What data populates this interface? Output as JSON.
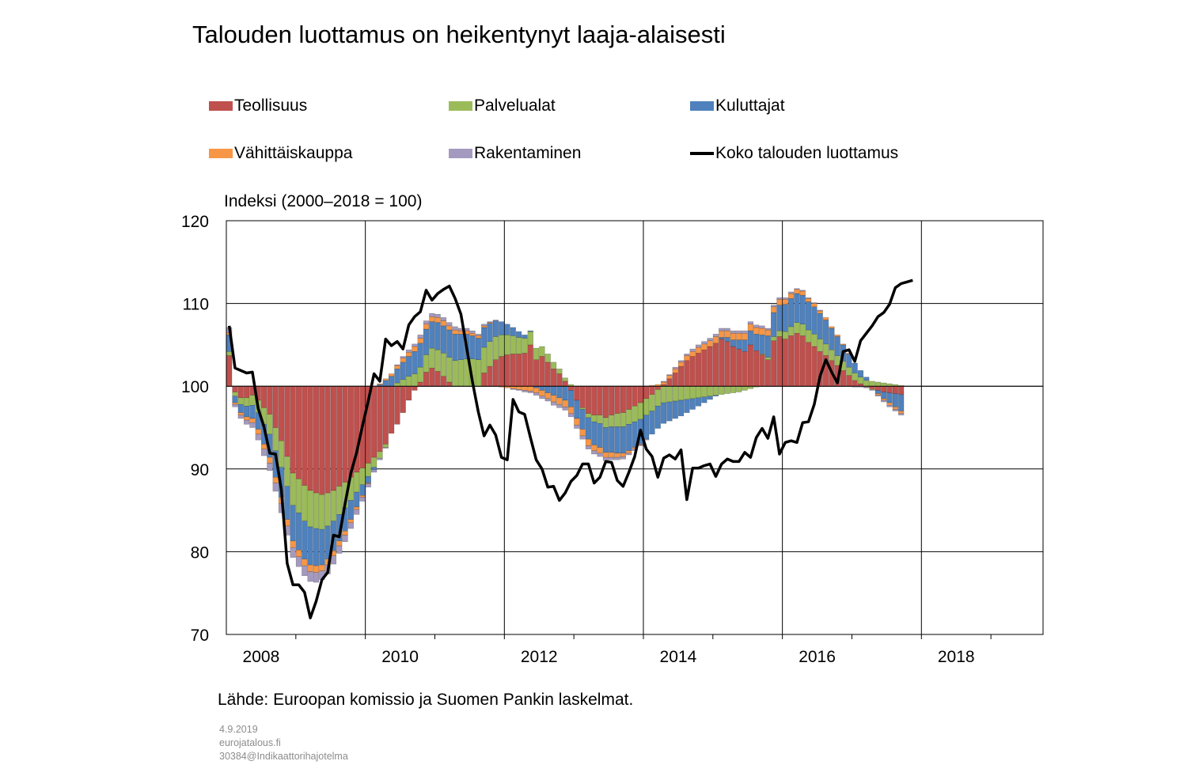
{
  "chart_data": {
    "type": "bar",
    "title": "Talouden luottamus on heikentynyt laaja-alaisesti",
    "ylabel": "Indeksi (2000–2018 = 100)",
    "baseline": 100,
    "ylim": [
      70,
      120
    ],
    "yticks": [
      70,
      80,
      90,
      100,
      110,
      120
    ],
    "xlim": [
      "2008-01",
      "2019-09"
    ],
    "xtick_labels": [
      "2008",
      "2010",
      "2012",
      "2014",
      "2016",
      "2018"
    ],
    "grid": true,
    "legend_position": "top",
    "months_start": "2008-01",
    "months_count": 117,
    "series": [
      {
        "name": "Teollisuus",
        "type": "bar",
        "color": "#c0504d",
        "values": [
          3.7,
          -0.7,
          -1.4,
          -1.4,
          -1.1,
          -1.7,
          -2.6,
          -3.4,
          -5.0,
          -6.6,
          -8.5,
          -10.5,
          -11.2,
          -12.0,
          -12.6,
          -12.9,
          -13.1,
          -12.9,
          -12.6,
          -12.1,
          -11.6,
          -11.0,
          -10.4,
          -9.9,
          -9.3,
          -8.6,
          -7.9,
          -7.0,
          -5.7,
          -4.6,
          -3.2,
          -1.7,
          -0.5,
          0.5,
          1.7,
          2.2,
          1.8,
          1.2,
          0.5,
          0.0,
          0.0,
          0.0,
          0.0,
          0.0,
          1.6,
          2.4,
          3.2,
          3.6,
          3.8,
          3.9,
          3.9,
          4.0,
          5.0,
          3.2,
          3.6,
          2.9,
          2.1,
          1.5,
          0.6,
          -0.5,
          -1.7,
          -2.6,
          -3.3,
          -3.5,
          -3.5,
          -3.8,
          -3.5,
          -3.3,
          -3.2,
          -2.8,
          -2.4,
          -2.0,
          -1.5,
          -1.0,
          -0.4,
          0.2,
          0.9,
          1.6,
          2.4,
          3.1,
          3.6,
          4.0,
          4.4,
          4.8,
          5.2,
          5.7,
          5.4,
          4.8,
          4.5,
          4.2,
          5.0,
          4.3,
          3.8,
          3.2,
          5.5,
          6.0,
          5.7,
          6.1,
          6.4,
          6.1,
          5.3,
          4.8,
          4.2,
          3.7,
          3.1,
          2.5,
          1.9,
          1.3,
          0.7,
          0.3,
          0.0,
          -0.3,
          -0.5,
          -0.7,
          -0.8,
          -0.9,
          -1.0
        ]
      },
      {
        "name": "Palvelualat",
        "type": "bar",
        "color": "#9bbb59",
        "values": [
          0.5,
          -0.5,
          -0.8,
          -1.0,
          -1.2,
          -1.5,
          -2.0,
          -2.4,
          -2.8,
          -3.2,
          -3.6,
          -3.9,
          -4.1,
          -4.3,
          -4.4,
          -4.3,
          -4.2,
          -4.0,
          -3.7,
          -3.4,
          -3.1,
          -2.8,
          -2.4,
          -2.0,
          -1.6,
          -1.2,
          -0.8,
          -0.4,
          0.0,
          0.4,
          0.8,
          1.2,
          1.5,
          1.8,
          2.1,
          2.4,
          2.6,
          2.8,
          3.0,
          3.1,
          3.2,
          3.3,
          3.3,
          3.2,
          3.1,
          3.0,
          2.8,
          2.6,
          2.4,
          2.2,
          2.0,
          1.8,
          1.6,
          1.4,
          1.2,
          1.0,
          0.8,
          0.6,
          0.4,
          0.2,
          0.0,
          -0.2,
          -0.5,
          -0.8,
          -1.0,
          -1.2,
          -1.4,
          -1.6,
          -1.7,
          -1.8,
          -1.9,
          -2.0,
          -2.0,
          -2.0,
          -2.0,
          -2.0,
          -1.9,
          -1.8,
          -1.7,
          -1.6,
          -1.5,
          -1.4,
          -1.3,
          -1.2,
          -1.1,
          -1.0,
          -0.9,
          -0.8,
          -0.7,
          -0.5,
          -0.3,
          -0.1,
          0.1,
          0.3,
          0.5,
          0.7,
          0.9,
          1.1,
          1.3,
          1.4,
          1.5,
          1.5,
          1.5,
          1.4,
          1.3,
          1.2,
          1.1,
          1.0,
          0.9,
          0.8,
          0.7,
          0.6,
          0.5,
          0.4,
          0.3,
          0.2,
          0.1
        ]
      },
      {
        "name": "Kuluttajat",
        "type": "bar",
        "color": "#4f81bd",
        "values": [
          2.0,
          -0.8,
          -1.0,
          -1.3,
          -1.6,
          -2.0,
          -2.4,
          -2.8,
          -3.2,
          -3.6,
          -4.0,
          -4.3,
          -4.5,
          -4.6,
          -4.6,
          -4.5,
          -4.3,
          -4.0,
          -3.6,
          -3.2,
          -2.8,
          -2.3,
          -1.8,
          -1.3,
          -0.8,
          -0.3,
          0.2,
          0.7,
          1.2,
          1.7,
          2.1,
          2.4,
          2.7,
          2.9,
          3.1,
          3.2,
          3.3,
          3.3,
          3.3,
          3.2,
          3.1,
          3.0,
          2.8,
          2.6,
          2.4,
          2.2,
          1.9,
          1.6,
          1.3,
          1.0,
          0.7,
          0.4,
          0.1,
          -0.2,
          -0.5,
          -0.8,
          -1.1,
          -1.4,
          -1.7,
          -2.0,
          -2.2,
          -2.4,
          -2.6,
          -2.8,
          -2.9,
          -3.0,
          -3.1,
          -3.2,
          -3.2,
          -3.2,
          -3.1,
          -3.0,
          -2.9,
          -2.8,
          -2.7,
          -2.5,
          -2.3,
          -2.1,
          -1.9,
          -1.6,
          -1.3,
          -1.0,
          -0.7,
          -0.4,
          -0.1,
          0.2,
          0.5,
          0.8,
          1.1,
          1.4,
          1.7,
          2.0,
          2.3,
          2.6,
          2.9,
          3.1,
          3.3,
          3.4,
          3.5,
          3.5,
          3.4,
          3.3,
          3.1,
          2.9,
          2.6,
          2.3,
          2.0,
          1.6,
          1.2,
          0.8,
          0.4,
          0.0,
          -0.4,
          -0.8,
          -1.2,
          -1.6,
          -2.0
        ]
      },
      {
        "name": "Vähittäiskauppa",
        "type": "bar",
        "color": "#f79646",
        "values": [
          0.3,
          -0.2,
          -0.3,
          -0.4,
          -0.5,
          -0.6,
          -0.6,
          -0.7,
          -0.7,
          -0.8,
          -0.8,
          -0.8,
          -0.8,
          -0.8,
          -0.8,
          -0.8,
          -0.7,
          -0.7,
          -0.6,
          -0.6,
          -0.5,
          -0.4,
          -0.3,
          -0.2,
          -0.1,
          0.0,
          0.1,
          0.2,
          0.3,
          0.4,
          0.5,
          0.5,
          0.6,
          0.6,
          0.6,
          0.6,
          0.6,
          0.6,
          0.5,
          0.5,
          0.4,
          0.4,
          0.3,
          0.3,
          0.2,
          0.1,
          0.0,
          -0.1,
          -0.2,
          -0.3,
          -0.4,
          -0.5,
          -0.6,
          -0.6,
          -0.7,
          -0.7,
          -0.8,
          -0.8,
          -0.8,
          -0.8,
          -0.8,
          -0.8,
          -0.8,
          -0.7,
          -0.7,
          -0.6,
          -0.6,
          -0.5,
          -0.4,
          -0.3,
          -0.2,
          -0.1,
          0.0,
          0.1,
          0.2,
          0.3,
          0.4,
          0.5,
          0.5,
          0.6,
          0.6,
          0.7,
          0.7,
          0.7,
          0.8,
          0.8,
          0.8,
          0.8,
          0.8,
          0.8,
          0.8,
          0.8,
          0.8,
          0.7,
          0.7,
          0.7,
          0.6,
          0.6,
          0.5,
          0.5,
          0.4,
          0.4,
          0.3,
          0.3,
          0.2,
          0.2,
          0.1,
          0.1,
          0.0,
          0.0,
          -0.1,
          -0.1,
          -0.2,
          -0.2,
          -0.3,
          -0.3,
          -0.3
        ]
      },
      {
        "name": "Rakentaminen",
        "type": "bar",
        "color": "#a49abf",
        "values": [
          0.6,
          -0.3,
          -0.4,
          -0.5,
          -0.6,
          -0.7,
          -0.8,
          -0.9,
          -1.0,
          -1.1,
          -1.1,
          -1.2,
          -1.2,
          -1.2,
          -1.2,
          -1.2,
          -1.1,
          -1.1,
          -1.0,
          -0.9,
          -0.8,
          -0.7,
          -0.6,
          -0.5,
          -0.4,
          -0.3,
          -0.2,
          -0.1,
          0.0,
          0.1,
          0.2,
          0.3,
          0.3,
          0.4,
          0.4,
          0.4,
          0.4,
          0.4,
          0.4,
          0.4,
          0.3,
          0.3,
          0.3,
          0.2,
          0.2,
          0.1,
          0.1,
          0.0,
          0.0,
          -0.1,
          -0.1,
          -0.2,
          -0.2,
          -0.3,
          -0.3,
          -0.3,
          -0.4,
          -0.4,
          -0.4,
          -0.4,
          -0.4,
          -0.4,
          -0.4,
          -0.4,
          -0.4,
          -0.4,
          -0.3,
          -0.3,
          -0.3,
          -0.2,
          -0.2,
          -0.1,
          -0.1,
          0.0,
          0.0,
          0.1,
          0.1,
          0.2,
          0.2,
          0.2,
          0.3,
          0.3,
          0.3,
          0.3,
          0.3,
          0.3,
          0.3,
          0.3,
          0.3,
          0.3,
          0.3,
          0.3,
          0.3,
          0.2,
          0.2,
          0.2,
          0.2,
          0.2,
          0.1,
          0.1,
          0.1,
          0.1,
          0.1,
          0.0,
          0.0,
          0.0,
          0.0,
          0.0,
          -0.1,
          -0.1,
          -0.1,
          -0.1,
          -0.1,
          -0.2,
          -0.2,
          -0.2,
          -0.2
        ]
      },
      {
        "name": "Koko talouden luottamus",
        "type": "line",
        "color": "#000000",
        "values": [
          107.3,
          102.2,
          101.9,
          101.6,
          101.7,
          97.3,
          95.1,
          91.9,
          91.8,
          87.5,
          78.6,
          76.0,
          76.0,
          75.1,
          72.0,
          74.0,
          76.6,
          77.5,
          82.0,
          81.8,
          85.8,
          89.5,
          92.0,
          95.2,
          98.2,
          101.5,
          100.6,
          105.7,
          104.9,
          105.4,
          104.5,
          107.4,
          108.4,
          109.0,
          111.6,
          110.4,
          111.2,
          111.7,
          112.1,
          110.6,
          108.7,
          104.6,
          100.5,
          96.9,
          94.0,
          95.3,
          94.1,
          91.4,
          91.1,
          98.4,
          96.9,
          96.6,
          93.8,
          91.1,
          90.0,
          87.8,
          87.9,
          86.2,
          87.1,
          88.5,
          89.2,
          90.6,
          90.6,
          88.3,
          89.0,
          90.9,
          90.8,
          88.6,
          87.9,
          89.6,
          91.5,
          94.7,
          92.4,
          91.5,
          89.0,
          91.3,
          91.7,
          91.2,
          92.3,
          86.3,
          90.1,
          90.1,
          90.4,
          90.6,
          89.1,
          90.6,
          91.2,
          90.9,
          90.9,
          92.0,
          91.4,
          93.8,
          94.9,
          93.7,
          96.3,
          91.8,
          93.2,
          93.4,
          93.2,
          95.6,
          95.7,
          97.8,
          101.2,
          103.2,
          101.7,
          100.4,
          104.2,
          104.4,
          103.0,
          105.5,
          106.4,
          107.3,
          108.4,
          108.9,
          109.9,
          111.9,
          112.4,
          112.6,
          112.8
        ]
      }
    ]
  },
  "source_text": "Lähde: Euroopan komissio ja Suomen Pankin laskelmat.",
  "meta": {
    "date": "4.9.2019",
    "site": "eurojatalous.fi",
    "code": "30384@Indikaattorihajotelma"
  }
}
